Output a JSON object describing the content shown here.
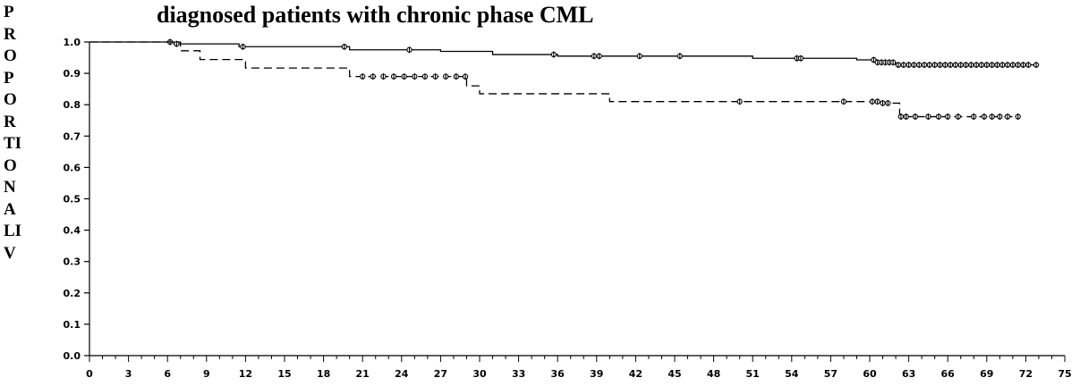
{
  "chart_data": {
    "type": "line",
    "title": "diagnosed patients with chronic phase CML",
    "ylabel_letters": [
      "P",
      "R",
      "O",
      "P",
      "O",
      "R",
      "TI",
      "O",
      "N",
      "A",
      "LI",
      "V"
    ],
    "xlabel": "",
    "x_ticks": [
      "0",
      "3",
      "6",
      "9",
      "12",
      "15",
      "18",
      "21",
      "24",
      "27",
      "30",
      "33",
      "36",
      "39",
      "42",
      "45",
      "48",
      "51",
      "54",
      "57",
      "60",
      "63",
      "66",
      "69",
      "72",
      "75"
    ],
    "y_ticks": [
      "0.0",
      "0.1",
      "0.2",
      "0.3",
      "0.4",
      "0.5",
      "0.6",
      "0.7",
      "0.8",
      "0.9",
      "1.0"
    ],
    "xlim": [
      0,
      75
    ],
    "ylim": [
      0,
      1.0
    ],
    "grid": false,
    "series": [
      {
        "style": "solid",
        "steps": [
          [
            0,
            1.0
          ],
          [
            6.5,
            0.994
          ],
          [
            11.5,
            0.985
          ],
          [
            20,
            0.975
          ],
          [
            27,
            0.97
          ],
          [
            31,
            0.96
          ],
          [
            36,
            0.955
          ],
          [
            51,
            0.948
          ],
          [
            59,
            0.943
          ],
          [
            60.5,
            0.935
          ],
          [
            62,
            0.927
          ],
          [
            73,
            0.927
          ]
        ],
        "censor_times": [
          6.2,
          6.7,
          11.8,
          19.6,
          24.6,
          35.7,
          38.8,
          39.2,
          42.3,
          45.4,
          54.4,
          54.7,
          60.3,
          60.6,
          60.9,
          61.2,
          61.5,
          61.8,
          62.2,
          62.6,
          63,
          63.4,
          63.8,
          64.2,
          64.6,
          65,
          65.4,
          65.8,
          66.2,
          66.6,
          67,
          67.4,
          67.8,
          68.2,
          68.6,
          69,
          69.4,
          69.8,
          70.2,
          70.6,
          71,
          71.4,
          71.8,
          72.2,
          72.8
        ]
      },
      {
        "style": "dashed",
        "steps": [
          [
            0,
            1.0
          ],
          [
            7,
            0.972
          ],
          [
            8.5,
            0.944
          ],
          [
            12,
            0.917
          ],
          [
            20,
            0.89
          ],
          [
            29,
            0.86
          ],
          [
            30,
            0.835
          ],
          [
            40,
            0.81
          ],
          [
            61,
            0.805
          ],
          [
            62.3,
            0.762
          ],
          [
            71.5,
            0.762
          ]
        ],
        "censor_times": [
          21,
          21.8,
          22.6,
          23.4,
          24.2,
          25,
          25.8,
          26.6,
          27.4,
          28.2,
          28.9,
          50,
          58,
          60.2,
          60.6,
          61,
          61.4,
          62.4,
          62.8,
          63.5,
          64.5,
          65.3,
          66,
          66.8,
          68,
          68.8,
          69.4,
          70,
          70.6,
          71.4
        ]
      }
    ]
  }
}
